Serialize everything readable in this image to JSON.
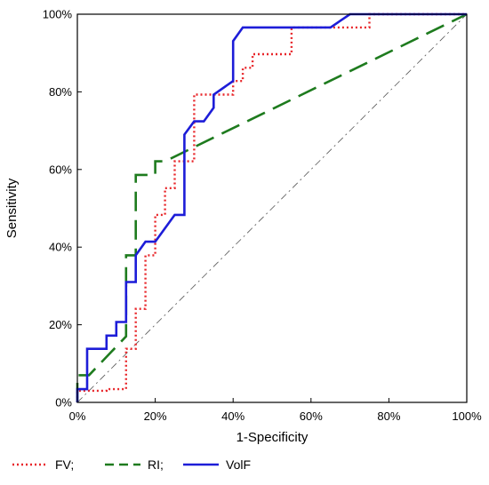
{
  "chart_data": {
    "type": "line",
    "xlabel": "1-Specificity",
    "ylabel": "Sensitivity",
    "xlim": [
      0,
      100
    ],
    "ylim": [
      0,
      100
    ],
    "x_ticks": [
      "0%",
      "20%",
      "40%",
      "60%",
      "80%",
      "100%"
    ],
    "y_ticks": [
      "0%",
      "20%",
      "40%",
      "60%",
      "80%",
      "100%"
    ],
    "grid": false,
    "legend_position": "bottom-left",
    "reference_line": {
      "x": [
        0,
        100
      ],
      "y": [
        0,
        100
      ],
      "color": "#555555",
      "style": "dash-dot"
    },
    "series": [
      {
        "name": "FV;",
        "color": "#e8262a",
        "style": "dotted",
        "points": [
          [
            0,
            0
          ],
          [
            0,
            3
          ],
          [
            7.5,
            3
          ],
          [
            7.5,
            3.4
          ],
          [
            12.5,
            3.4
          ],
          [
            12.5,
            13.8
          ],
          [
            15,
            13.8
          ],
          [
            15,
            24.1
          ],
          [
            17.5,
            24.1
          ],
          [
            17.5,
            37.9
          ],
          [
            20,
            37.9
          ],
          [
            20,
            48.3
          ],
          [
            22.5,
            48.3
          ],
          [
            22.5,
            55.2
          ],
          [
            25,
            55.2
          ],
          [
            25,
            62.1
          ],
          [
            30,
            62.1
          ],
          [
            30,
            79.3
          ],
          [
            40,
            79.3
          ],
          [
            40,
            82.8
          ],
          [
            42.5,
            82.8
          ],
          [
            42.5,
            86.2
          ],
          [
            45,
            86.2
          ],
          [
            45,
            89.7
          ],
          [
            55,
            89.7
          ],
          [
            55,
            96.6
          ],
          [
            75,
            96.6
          ],
          [
            75,
            100
          ],
          [
            100,
            100
          ]
        ]
      },
      {
        "name": "RI;",
        "color": "#1e7b1e",
        "style": "dashed",
        "points": [
          [
            0,
            0
          ],
          [
            0,
            7
          ],
          [
            3,
            7
          ],
          [
            12.5,
            17
          ],
          [
            12.5,
            37.9
          ],
          [
            15,
            37.9
          ],
          [
            15,
            58.6
          ],
          [
            20,
            58.6
          ],
          [
            20,
            62.1
          ],
          [
            22.5,
            62.1
          ],
          [
            100,
            100
          ]
        ]
      },
      {
        "name": "VolF",
        "color": "#1d1dd8",
        "style": "solid",
        "points": [
          [
            0,
            0
          ],
          [
            0,
            3.4
          ],
          [
            2.5,
            3.4
          ],
          [
            2.5,
            13.8
          ],
          [
            7.5,
            13.8
          ],
          [
            7.5,
            17.2
          ],
          [
            10,
            17.2
          ],
          [
            10,
            20.7
          ],
          [
            12.5,
            20.7
          ],
          [
            12.5,
            31
          ],
          [
            15,
            31
          ],
          [
            15,
            37.9
          ],
          [
            17.5,
            41.4
          ],
          [
            20,
            41.4
          ],
          [
            25,
            48.3
          ],
          [
            27.5,
            48.3
          ],
          [
            27.5,
            69
          ],
          [
            30,
            72.4
          ],
          [
            32.5,
            72.4
          ],
          [
            35,
            75.9
          ],
          [
            35,
            79.3
          ],
          [
            40,
            82.8
          ],
          [
            40,
            93.1
          ],
          [
            42.5,
            96.6
          ],
          [
            65,
            96.6
          ],
          [
            70,
            100
          ],
          [
            100,
            100
          ]
        ]
      }
    ]
  }
}
